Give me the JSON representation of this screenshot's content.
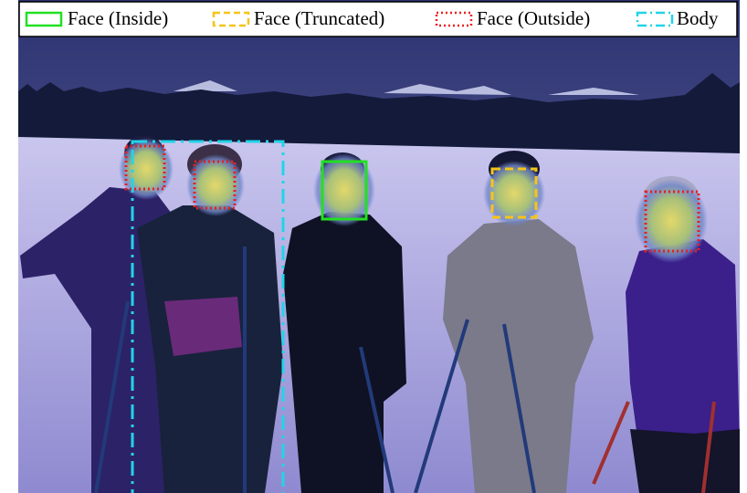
{
  "legend": {
    "items": [
      "Face (Inside)",
      "Face (Truncated)",
      "Face (Outside)",
      "Body"
    ]
  }
}
